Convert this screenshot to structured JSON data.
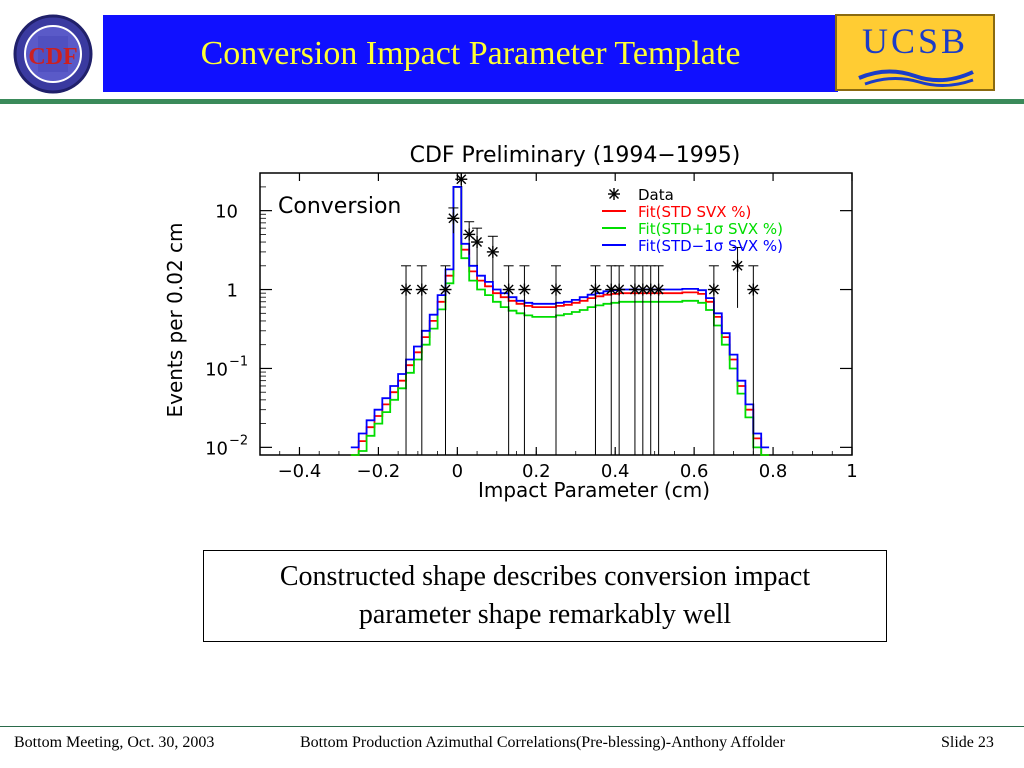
{
  "slide": {
    "title": "Conversion Impact Parameter Template",
    "logo_left_text": "CDF",
    "logo_right_text": "UCSB",
    "callout_line1": "Constructed shape describes conversion impact",
    "callout_line2": "parameter shape remarkably well"
  },
  "footer": {
    "left": "Bottom Meeting, Oct. 30, 2003",
    "center": "Bottom Production Azimuthal Correlations(Pre-blessing)-Anthony Affolder",
    "right": "Slide 23"
  },
  "colors": {
    "header_blue": "#1010ff",
    "title_yellow": "#ffff33",
    "divider_green": "#3a8a5a",
    "fit_std": "#ff0000",
    "fit_plus": "#00dd00",
    "fit_minus": "#0000ff"
  },
  "chart_data": {
    "type": "line",
    "title": "CDF Preliminary (1994−1995)",
    "xlabel": "Impact Parameter (cm)",
    "ylabel": "Events per 0.02 cm",
    "annotation": "Conversion",
    "y_scale": "log",
    "xlim": [
      -0.5,
      1.0
    ],
    "ylim": [
      0.008,
      30
    ],
    "x_ticks": [
      -0.4,
      -0.2,
      0,
      0.2,
      0.4,
      0.6,
      0.8,
      1
    ],
    "x_tick_labels": [
      "−0.4",
      "−0.2",
      "0",
      "0.2",
      "0.4",
      "0.6",
      "0.8",
      "1"
    ],
    "y_ticks": [
      0.01,
      0.1,
      1,
      10
    ],
    "legend_position": "top-right",
    "data_points": {
      "name": "Data",
      "x": [
        -0.13,
        -0.09,
        -0.03,
        -0.01,
        0.01,
        0.03,
        0.05,
        0.09,
        0.13,
        0.17,
        0.25,
        0.35,
        0.39,
        0.41,
        0.45,
        0.47,
        0.49,
        0.51,
        0.65,
        0.71,
        0.75
      ],
      "y": [
        1,
        1,
        1,
        8,
        25,
        5,
        4,
        3,
        1,
        1,
        1,
        1,
        1,
        1,
        1,
        1,
        1,
        1,
        1,
        2,
        1
      ]
    },
    "series": [
      {
        "name": "Fit(STD SVX %)",
        "color": "#ff0000",
        "x": [
          -0.26,
          -0.24,
          -0.22,
          -0.2,
          -0.18,
          -0.16,
          -0.14,
          -0.12,
          -0.1,
          -0.08,
          -0.06,
          -0.04,
          -0.02,
          0,
          0.02,
          0.04,
          0.06,
          0.08,
          0.1,
          0.12,
          0.14,
          0.16,
          0.18,
          0.2,
          0.22,
          0.24,
          0.26,
          0.28,
          0.3,
          0.32,
          0.34,
          0.36,
          0.38,
          0.4,
          0.42,
          0.44,
          0.46,
          0.48,
          0.5,
          0.52,
          0.54,
          0.56,
          0.58,
          0.6,
          0.62,
          0.64,
          0.66,
          0.68,
          0.7,
          0.72,
          0.74,
          0.76,
          0.78
        ],
        "y": [
          0.008,
          0.012,
          0.018,
          0.025,
          0.035,
          0.05,
          0.07,
          0.11,
          0.16,
          0.25,
          0.4,
          0.7,
          1.5,
          20,
          3.2,
          1.7,
          1.3,
          1.1,
          0.9,
          0.8,
          0.72,
          0.66,
          0.62,
          0.6,
          0.6,
          0.6,
          0.62,
          0.64,
          0.68,
          0.72,
          0.78,
          0.82,
          0.86,
          0.88,
          0.9,
          0.9,
          0.9,
          0.9,
          0.9,
          0.9,
          0.9,
          0.9,
          0.92,
          0.92,
          0.88,
          0.7,
          0.45,
          0.25,
          0.13,
          0.06,
          0.03,
          0.013,
          0.008
        ]
      },
      {
        "name": "Fit(STD+1σ SVX %)",
        "color": "#00dd00",
        "x": [
          -0.26,
          -0.24,
          -0.22,
          -0.2,
          -0.18,
          -0.16,
          -0.14,
          -0.12,
          -0.1,
          -0.08,
          -0.06,
          -0.04,
          -0.02,
          0,
          0.02,
          0.04,
          0.06,
          0.08,
          0.1,
          0.12,
          0.14,
          0.16,
          0.18,
          0.2,
          0.22,
          0.24,
          0.26,
          0.28,
          0.3,
          0.32,
          0.34,
          0.36,
          0.38,
          0.4,
          0.42,
          0.44,
          0.46,
          0.48,
          0.5,
          0.52,
          0.54,
          0.56,
          0.58,
          0.6,
          0.62,
          0.64,
          0.66,
          0.68,
          0.7,
          0.72,
          0.74,
          0.76,
          0.78
        ],
        "y": [
          0.006,
          0.009,
          0.014,
          0.02,
          0.028,
          0.04,
          0.056,
          0.088,
          0.13,
          0.2,
          0.32,
          0.56,
          1.2,
          20,
          2.5,
          1.3,
          1.0,
          0.85,
          0.7,
          0.6,
          0.54,
          0.5,
          0.47,
          0.45,
          0.45,
          0.45,
          0.47,
          0.49,
          0.52,
          0.55,
          0.6,
          0.63,
          0.66,
          0.68,
          0.7,
          0.7,
          0.7,
          0.7,
          0.7,
          0.7,
          0.7,
          0.7,
          0.72,
          0.72,
          0.68,
          0.55,
          0.35,
          0.2,
          0.1,
          0.048,
          0.024,
          0.01,
          0.006
        ]
      },
      {
        "name": "Fit(STD−1σ SVX %)",
        "color": "#0000ff",
        "x": [
          -0.26,
          -0.24,
          -0.22,
          -0.2,
          -0.18,
          -0.16,
          -0.14,
          -0.12,
          -0.1,
          -0.08,
          -0.06,
          -0.04,
          -0.02,
          0,
          0.02,
          0.04,
          0.06,
          0.08,
          0.1,
          0.12,
          0.14,
          0.16,
          0.18,
          0.2,
          0.22,
          0.24,
          0.26,
          0.28,
          0.3,
          0.32,
          0.34,
          0.36,
          0.38,
          0.4,
          0.42,
          0.44,
          0.46,
          0.48,
          0.5,
          0.52,
          0.54,
          0.56,
          0.58,
          0.6,
          0.62,
          0.64,
          0.66,
          0.68,
          0.7,
          0.72,
          0.74,
          0.76,
          0.78
        ],
        "y": [
          0.01,
          0.015,
          0.022,
          0.03,
          0.042,
          0.06,
          0.085,
          0.13,
          0.19,
          0.3,
          0.48,
          0.85,
          1.8,
          20,
          3.8,
          2.0,
          1.5,
          1.25,
          1.0,
          0.9,
          0.8,
          0.72,
          0.68,
          0.66,
          0.66,
          0.66,
          0.68,
          0.7,
          0.74,
          0.8,
          0.86,
          0.9,
          0.95,
          0.98,
          1.0,
          1.0,
          1.0,
          1.0,
          1.0,
          1.0,
          1.0,
          1.0,
          1.02,
          1.02,
          0.98,
          0.78,
          0.5,
          0.28,
          0.15,
          0.07,
          0.035,
          0.015,
          0.01
        ]
      }
    ]
  }
}
